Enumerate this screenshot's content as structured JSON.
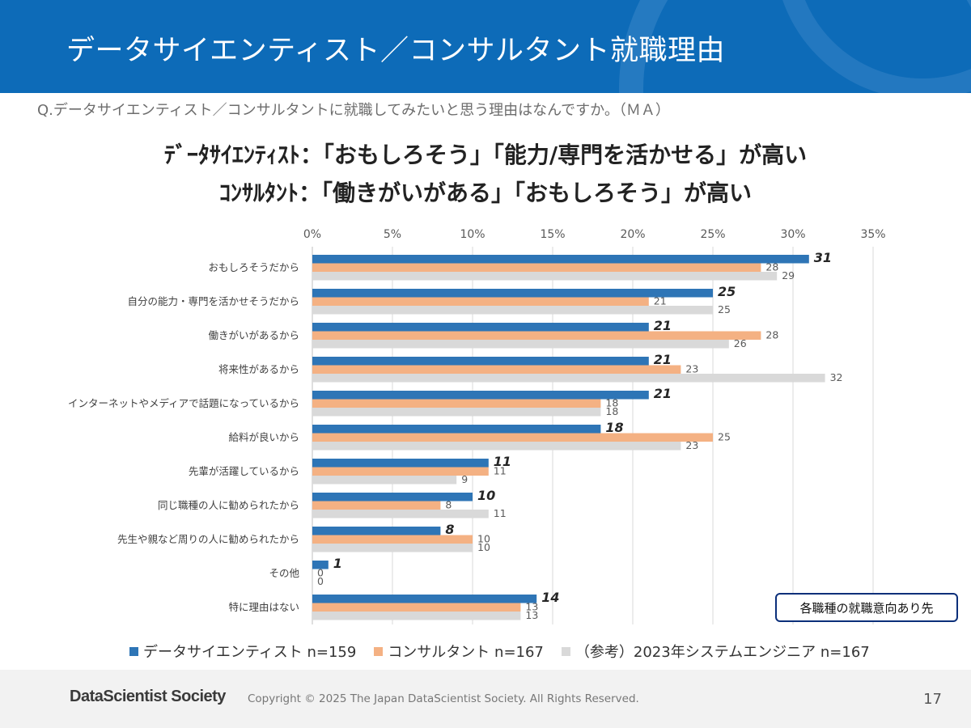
{
  "header": {
    "title": "データサイエンティスト／コンサルタント就職理由"
  },
  "question": "Q.データサイエンティスト／コンサルタントに就職してみたいと思う理由はなんですか。（ＭＡ）",
  "headline": {
    "line1": "ﾃﾞｰﾀｻｲｴﾝﾃｨｽﾄ：「おもしろそう」「能力/専門を活かせる」が高い",
    "line2": "ｺﾝｻﾙﾀﾝﾄ：「働きがいがある」「おもしろそう」が高い"
  },
  "note": "各職種の就職意向あり先",
  "footer": {
    "logo": "DataScientist Society",
    "copyright": "Copyright © 2025 The Japan DataScientist Society. All Rights Reserved.",
    "page_number": "17"
  },
  "colors": {
    "header_bg": "#0d6bb8",
    "ds": "#2e75b6",
    "consultant": "#f4b183",
    "engineer": "#d9d9d9"
  },
  "chart_data": {
    "type": "bar",
    "orientation": "horizontal",
    "xlim": [
      0,
      35
    ],
    "x_ticks": [
      "0%",
      "5%",
      "10%",
      "15%",
      "20%",
      "25%",
      "30%",
      "35%"
    ],
    "grid": true,
    "legend_position": "bottom",
    "categories": [
      "おもしろそうだから",
      "自分の能力・専門を活かせそうだから",
      "働きがいがあるから",
      "将来性があるから",
      "インターネットやメディアで話題になっているから",
      "給料が良いから",
      "先輩が活躍しているから",
      "同じ職種の人に勧められたから",
      "先生や親など周りの人に勧められたから",
      "その他",
      "特に理由はない"
    ],
    "series": [
      {
        "name": "データサイエンティスト n=159",
        "color": "#2e75b6",
        "values": [
          31,
          25,
          21,
          21,
          21,
          18,
          11,
          10,
          8,
          1,
          14
        ]
      },
      {
        "name": "コンサルタント n=167",
        "color": "#f4b183",
        "values": [
          28,
          21,
          28,
          23,
          18,
          25,
          11,
          8,
          10,
          0,
          13
        ]
      },
      {
        "name": "（参考）2023年システムエンジニア n=167",
        "color": "#d9d9d9",
        "values": [
          29,
          25,
          26,
          32,
          18,
          23,
          9,
          11,
          10,
          0,
          13
        ]
      }
    ]
  }
}
